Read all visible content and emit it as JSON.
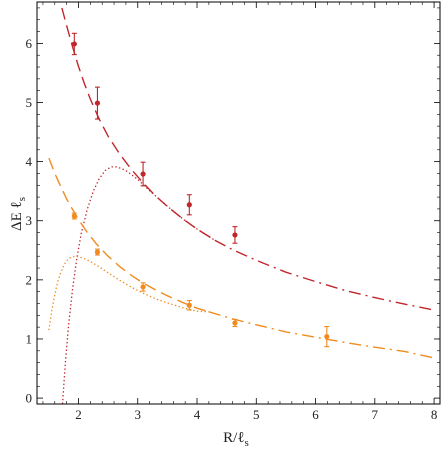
{
  "chart_data": {
    "type": "scatter",
    "xlabel": "R/ℓ",
    "xlabel_sub": "s",
    "ylabel": "ΔE ℓ",
    "ylabel_sub": "s",
    "xlim": [
      1.3,
      8.1
    ],
    "ylim": [
      -0.1,
      6.7
    ],
    "x_ticks": [
      2,
      3,
      4,
      5,
      6,
      7,
      8
    ],
    "y_ticks": [
      0,
      1,
      2,
      3,
      4,
      5,
      6
    ],
    "x_minor": 0.2,
    "y_minor": 0.2,
    "grid": false,
    "colors": {
      "red": "#c0272d",
      "orange": "#f08c1f",
      "frame": "#000000"
    },
    "series": [
      {
        "color": "red",
        "points": [
          {
            "x": 1.93,
            "y": 5.99,
            "err": 0.18
          },
          {
            "x": 2.32,
            "y": 4.99,
            "err": 0.27
          },
          {
            "x": 3.09,
            "y": 3.79,
            "err": 0.2
          },
          {
            "x": 3.87,
            "y": 3.27,
            "err": 0.17
          },
          {
            "x": 4.64,
            "y": 2.76,
            "err": 0.14
          }
        ],
        "curves": [
          {
            "style": "dashed",
            "x": [
              1.72,
              1.8,
              1.9,
              2.0,
              2.1,
              2.2,
              2.35,
              2.5,
              2.7,
              2.9,
              3.1,
              3.3,
              3.5,
              3.75,
              4.0,
              4.3
            ],
            "y": [
              6.6,
              6.3,
              5.94,
              5.61,
              5.32,
              5.06,
              4.72,
              4.43,
              4.12,
              3.86,
              3.63,
              3.42,
              3.24,
              3.04,
              2.86,
              2.67
            ]
          },
          {
            "style": "dashdot",
            "x": [
              4.3,
              4.6,
              5.0,
              5.5,
              6.0,
              6.5,
              7.0,
              7.5,
              8.0
            ],
            "y": [
              2.67,
              2.51,
              2.33,
              2.13,
              1.97,
              1.82,
              1.7,
              1.59,
              1.49
            ]
          },
          {
            "style": "dotted",
            "x": [
              1.73,
              1.78,
              1.83,
              1.9,
              1.97,
              2.05,
              2.15,
              2.25,
              2.35,
              2.45,
              2.55,
              2.65,
              2.8,
              3.0,
              3.2,
              3.4,
              3.6,
              3.8,
              4.0,
              4.3
            ],
            "y": [
              -0.1,
              0.6,
              1.2,
              1.85,
              2.35,
              2.8,
              3.2,
              3.5,
              3.71,
              3.85,
              3.91,
              3.91,
              3.85,
              3.7,
              3.51,
              3.33,
              3.16,
              3.0,
              2.86,
              2.67
            ]
          }
        ]
      },
      {
        "color": "orange",
        "points": [
          {
            "x": 1.93,
            "y": 3.08,
            "err": 0.05
          },
          {
            "x": 2.32,
            "y": 2.47,
            "err": 0.05
          },
          {
            "x": 3.09,
            "y": 1.88,
            "err": 0.07
          },
          {
            "x": 3.87,
            "y": 1.57,
            "err": 0.08
          },
          {
            "x": 4.64,
            "y": 1.27,
            "err": 0.06
          },
          {
            "x": 6.19,
            "y": 1.04,
            "err": 0.17
          }
        ],
        "curves": [
          {
            "style": "dashed",
            "x": [
              1.5,
              1.6,
              1.7,
              1.8,
              1.9,
              2.0,
              2.15,
              2.3,
              2.5,
              2.7,
              2.9,
              3.1,
              3.3,
              3.5,
              3.75,
              4.0,
              4.2
            ],
            "y": [
              4.06,
              3.8,
              3.58,
              3.37,
              3.19,
              3.02,
              2.8,
              2.61,
              2.4,
              2.22,
              2.07,
              1.94,
              1.83,
              1.73,
              1.62,
              1.52,
              1.46
            ]
          },
          {
            "style": "dashdot",
            "x": [
              4.2,
              4.6,
              5.0,
              5.5,
              6.0,
              6.5,
              7.0,
              7.5,
              8.0
            ],
            "y": [
              1.46,
              1.34,
              1.24,
              1.12,
              1.03,
              0.94,
              0.86,
              0.79,
              0.68
            ]
          },
          {
            "style": "dotted",
            "x": [
              1.5,
              1.55,
              1.6,
              1.65,
              1.7,
              1.75,
              1.8,
              1.85,
              1.9,
              1.95,
              2.0,
              2.1,
              2.2,
              2.35,
              2.5,
              2.7,
              2.9,
              3.1,
              3.3,
              3.5,
              3.75,
              4.0,
              4.2
            ],
            "y": [
              1.15,
              1.48,
              1.75,
              1.97,
              2.12,
              2.24,
              2.32,
              2.37,
              2.39,
              2.4,
              2.39,
              2.36,
              2.31,
              2.22,
              2.12,
              1.99,
              1.87,
              1.77,
              1.68,
              1.61,
              1.53,
              1.47,
              1.46
            ]
          }
        ]
      }
    ]
  }
}
